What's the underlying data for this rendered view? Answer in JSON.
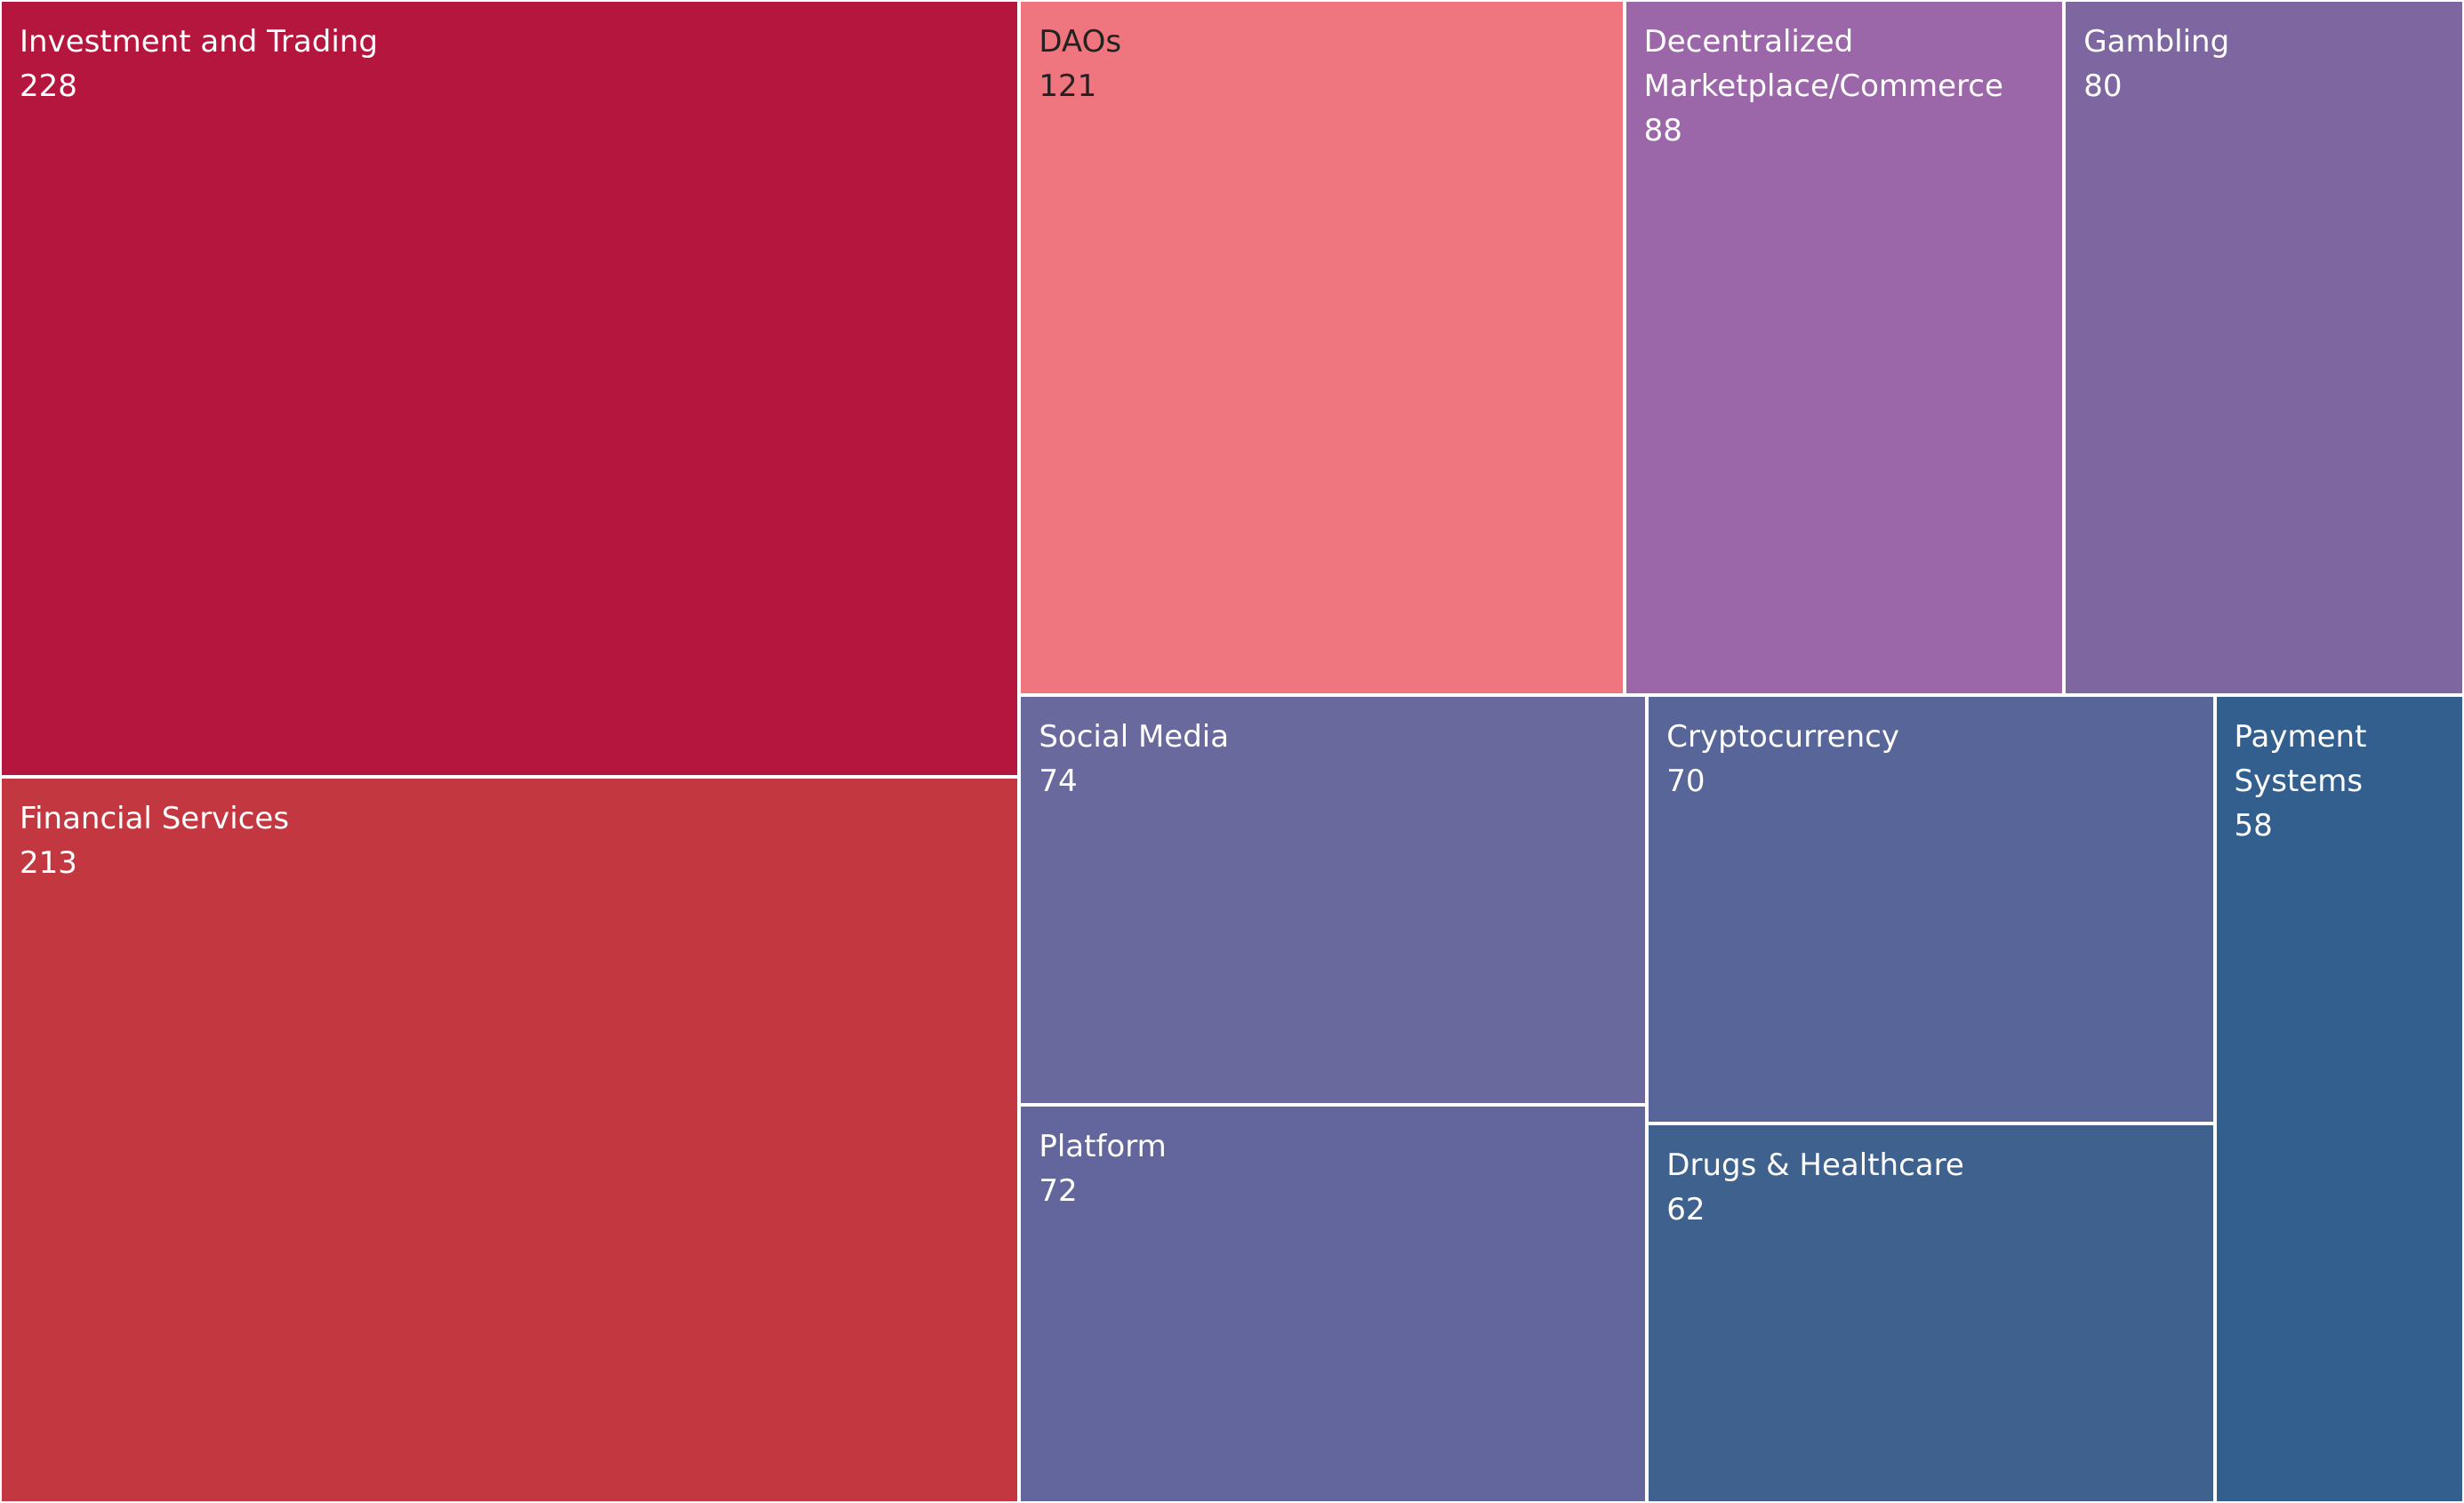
{
  "chart_data": {
    "type": "treemap",
    "items": [
      {
        "label": "Investment and Trading",
        "value": 228,
        "color": "#B5163E"
      },
      {
        "label": "Financial Services",
        "value": 213,
        "color": "#C33840"
      },
      {
        "label": "DAOs",
        "value": 121,
        "color": "#EF767E"
      },
      {
        "label": "Decentralized Marketplace/Commerce",
        "value": 88,
        "color": "#9C67A8"
      },
      {
        "label": "Gambling",
        "value": 80,
        "color": "#7E66A0"
      },
      {
        "label": "Social Media",
        "value": 74,
        "color": "#6A699E"
      },
      {
        "label": "Platform",
        "value": 72,
        "color": "#62669C"
      },
      {
        "label": "Cryptocurrency",
        "value": 70,
        "color": "#586598"
      },
      {
        "label": "Drugs & Healthcare",
        "value": 62,
        "color": "#3F618E"
      },
      {
        "label": "Payment Systems",
        "value": 58,
        "color": "#325F8E"
      }
    ]
  }
}
